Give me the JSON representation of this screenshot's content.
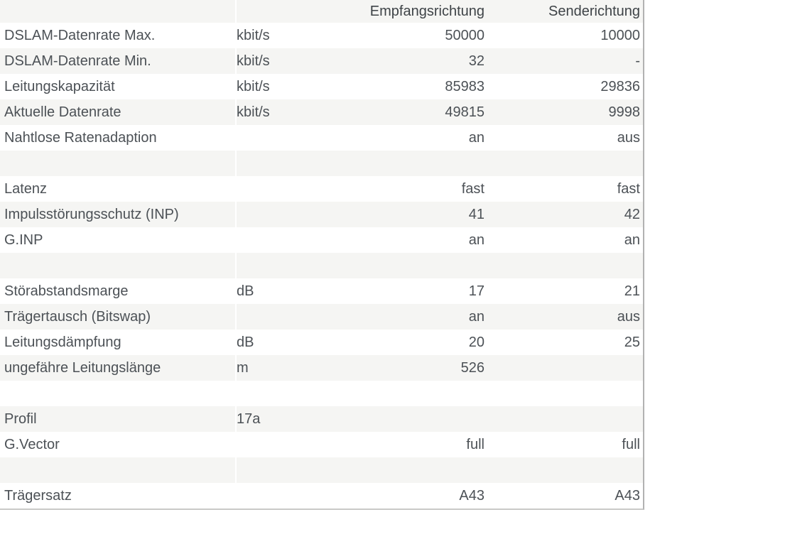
{
  "table": {
    "header": {
      "label_col": "",
      "unit_col": "",
      "downstream": "Empfangsrichtung",
      "upstream": "Senderichtung"
    },
    "rows": [
      {
        "label": "DSLAM-Datenrate Max.",
        "unit": "kbit/s",
        "rx": "50000",
        "tx": "10000"
      },
      {
        "label": "DSLAM-Datenrate Min.",
        "unit": "kbit/s",
        "rx": "32",
        "tx": "-"
      },
      {
        "label": "Leitungskapazität",
        "unit": "kbit/s",
        "rx": "85983",
        "tx": "29836"
      },
      {
        "label": "Aktuelle Datenrate",
        "unit": "kbit/s",
        "rx": "49815",
        "tx": "9998"
      },
      {
        "label": "Nahtlose Ratenadaption",
        "unit": "",
        "rx": "an",
        "tx": "aus"
      },
      {
        "label": "",
        "unit": "",
        "rx": "",
        "tx": ""
      },
      {
        "label": "Latenz",
        "unit": "",
        "rx": "fast",
        "tx": "fast"
      },
      {
        "label": "Impulsstörungsschutz (INP)",
        "unit": "",
        "rx": "41",
        "tx": "42"
      },
      {
        "label": "G.INP",
        "unit": "",
        "rx": "an",
        "tx": "an"
      },
      {
        "label": "",
        "unit": "",
        "rx": "",
        "tx": ""
      },
      {
        "label": "Störabstandsmarge",
        "unit": "dB",
        "rx": "17",
        "tx": "21"
      },
      {
        "label": "Trägertausch (Bitswap)",
        "unit": "",
        "rx": "an",
        "tx": "aus"
      },
      {
        "label": "Leitungsdämpfung",
        "unit": "dB",
        "rx": "20",
        "tx": "25"
      },
      {
        "label": "ungefähre Leitungslänge",
        "unit": "m",
        "rx": "526",
        "tx": ""
      },
      {
        "label": "",
        "unit": "",
        "rx": "",
        "tx": ""
      },
      {
        "label": "Profil",
        "unit": "17a",
        "rx": "",
        "tx": ""
      },
      {
        "label": "G.Vector",
        "unit": "",
        "rx": "full",
        "tx": "full"
      },
      {
        "label": "",
        "unit": "",
        "rx": "",
        "tx": ""
      },
      {
        "label": "Trägersatz",
        "unit": "",
        "rx": "A43",
        "tx": "A43"
      }
    ]
  },
  "colors": {
    "stripe": "#f5f5f3",
    "body_text": "#4c5156",
    "header_text": "#3e4347",
    "right_border": "#b2b2b2",
    "bottom_border": "#c9c9c7",
    "background": "#ffffff"
  }
}
